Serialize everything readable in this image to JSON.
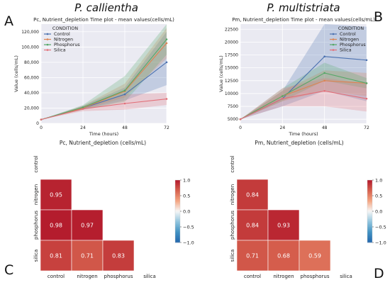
{
  "panel_letters": {
    "A": "A",
    "B": "B",
    "C": "C",
    "D": "D"
  },
  "species": {
    "left": "P. callientha",
    "right": "P. multistriata"
  },
  "colors": {
    "Control": "#4c72b0",
    "Nitrogen": "#dd8452",
    "Phosphorus": "#55a868",
    "Silica": "#e26f78",
    "plot_bg": "#eaeaf2",
    "grid": "#ffffff"
  },
  "legend": {
    "title": "CONDITION",
    "entries": [
      "Control",
      "Nitrogen",
      "Phosphorus",
      "Silica"
    ]
  },
  "chart_data": [
    {
      "id": "A",
      "type": "line",
      "title": "Pc, Nutrient_depletion Time plot - mean values(cells/mL)",
      "xlabel": "Time (hours)",
      "ylabel": "Value (cells/mL)",
      "x": [
        0,
        24,
        48,
        72
      ],
      "xticks": [
        "0",
        "24",
        "48",
        "72"
      ],
      "xlim": [
        0,
        72
      ],
      "ylim": [
        0,
        130000
      ],
      "yticks": [
        0,
        20000,
        40000,
        60000,
        80000,
        100000,
        120000
      ],
      "ytick_labels": [
        "0",
        "20,000",
        "40,000",
        "60,000",
        "80,000",
        "100,000",
        "120,000"
      ],
      "grid": true,
      "legend_position": "top-left",
      "series": [
        {
          "name": "Control",
          "values": [
            5000,
            20000,
            38000,
            80000
          ],
          "lower": [
            5000,
            18000,
            30000,
            50000
          ],
          "upper": [
            5000,
            23000,
            47000,
            120000
          ]
        },
        {
          "name": "Nitrogen",
          "values": [
            5000,
            20000,
            42000,
            105000
          ],
          "lower": [
            5000,
            18000,
            34000,
            85000
          ],
          "upper": [
            5000,
            23000,
            52000,
            125000
          ]
        },
        {
          "name": "Phosphorus",
          "values": [
            5000,
            21000,
            43000,
            110000
          ],
          "lower": [
            5000,
            18000,
            28000,
            90000
          ],
          "upper": [
            5000,
            24000,
            62000,
            130000
          ]
        },
        {
          "name": "Silica",
          "values": [
            5000,
            19000,
            26000,
            32000
          ],
          "lower": [
            5000,
            16000,
            18000,
            24000
          ],
          "upper": [
            5000,
            22000,
            38000,
            40000
          ]
        }
      ]
    },
    {
      "id": "B",
      "type": "line",
      "title": "Pm, Nutrient_depletion Time plot - mean values(cells/mL)",
      "xlabel": "Time (hours)",
      "ylabel": "Value (cells/mL)",
      "x": [
        0,
        24,
        48,
        72
      ],
      "xticks": [
        "0",
        "24",
        "48",
        "72"
      ],
      "xlim": [
        0,
        72
      ],
      "ylim": [
        4200,
        23500
      ],
      "yticks": [
        5000,
        7500,
        10000,
        12500,
        15000,
        17500,
        20000,
        22500
      ],
      "ytick_labels": [
        "5000",
        "7500",
        "10000",
        "12500",
        "15000",
        "17500",
        "20000",
        "22500"
      ],
      "grid": true,
      "legend_position": "top-right",
      "series": [
        {
          "name": "Control",
          "values": [
            5000,
            9000,
            17200,
            16500
          ],
          "lower": [
            5000,
            7500,
            10500,
            8500
          ],
          "upper": [
            5000,
            10500,
            23500,
            23000
          ]
        },
        {
          "name": "Nitrogen",
          "values": [
            5000,
            9500,
            12500,
            12000
          ],
          "lower": [
            5000,
            8500,
            10500,
            9500
          ],
          "upper": [
            5000,
            10500,
            14500,
            14000
          ]
        },
        {
          "name": "Phosphorus",
          "values": [
            5000,
            9500,
            14000,
            12000
          ],
          "lower": [
            5000,
            8500,
            12500,
            11000
          ],
          "upper": [
            5000,
            11000,
            16000,
            13000
          ]
        },
        {
          "name": "Silica",
          "values": [
            5000,
            9000,
            10500,
            9000
          ],
          "lower": [
            5000,
            7500,
            7500,
            6500
          ],
          "upper": [
            5000,
            11000,
            13000,
            12000
          ]
        }
      ]
    },
    {
      "id": "C",
      "type": "heatmap",
      "title": "Pc, Nutrient_depletion (cells/mL)",
      "rows": [
        "control",
        "nitrogen",
        "phosphorus",
        "silica"
      ],
      "cols": [
        "control",
        "nitrogen",
        "phosphorus",
        "silica"
      ],
      "cells": [
        {
          "row": 1,
          "col": 0,
          "value": 0.95,
          "label": "0.95"
        },
        {
          "row": 2,
          "col": 0,
          "value": 0.98,
          "label": "0.98"
        },
        {
          "row": 2,
          "col": 1,
          "value": 0.97,
          "label": "0.97"
        },
        {
          "row": 3,
          "col": 0,
          "value": 0.81,
          "label": "0.81"
        },
        {
          "row": 3,
          "col": 1,
          "value": 0.71,
          "label": "0.71"
        },
        {
          "row": 3,
          "col": 2,
          "value": 0.83,
          "label": "0.83"
        }
      ],
      "colorbar": {
        "range": [
          -1.0,
          1.0
        ],
        "ticks": [
          "1.0",
          "0.5",
          "0.0",
          "−0.5",
          "−1.0"
        ]
      }
    },
    {
      "id": "D",
      "type": "heatmap",
      "title": "Pm, Nutrient_depletion (cells/mL)",
      "rows": [
        "control",
        "nitrogen",
        "phosphorus",
        "silica"
      ],
      "cols": [
        "control",
        "nitrogen",
        "phosphorus",
        "silica"
      ],
      "cells": [
        {
          "row": 1,
          "col": 0,
          "value": 0.84,
          "label": "0.84"
        },
        {
          "row": 2,
          "col": 0,
          "value": 0.84,
          "label": "0.84"
        },
        {
          "row": 2,
          "col": 1,
          "value": 0.93,
          "label": "0.93"
        },
        {
          "row": 3,
          "col": 0,
          "value": 0.71,
          "label": "0.71"
        },
        {
          "row": 3,
          "col": 1,
          "value": 0.68,
          "label": "0.68"
        },
        {
          "row": 3,
          "col": 2,
          "value": 0.59,
          "label": "0.59"
        }
      ],
      "colorbar": {
        "range": [
          -1.0,
          1.0
        ],
        "ticks": [
          "1.0",
          "0.5",
          "0.0",
          "−0.5",
          "−1.0"
        ]
      }
    }
  ]
}
